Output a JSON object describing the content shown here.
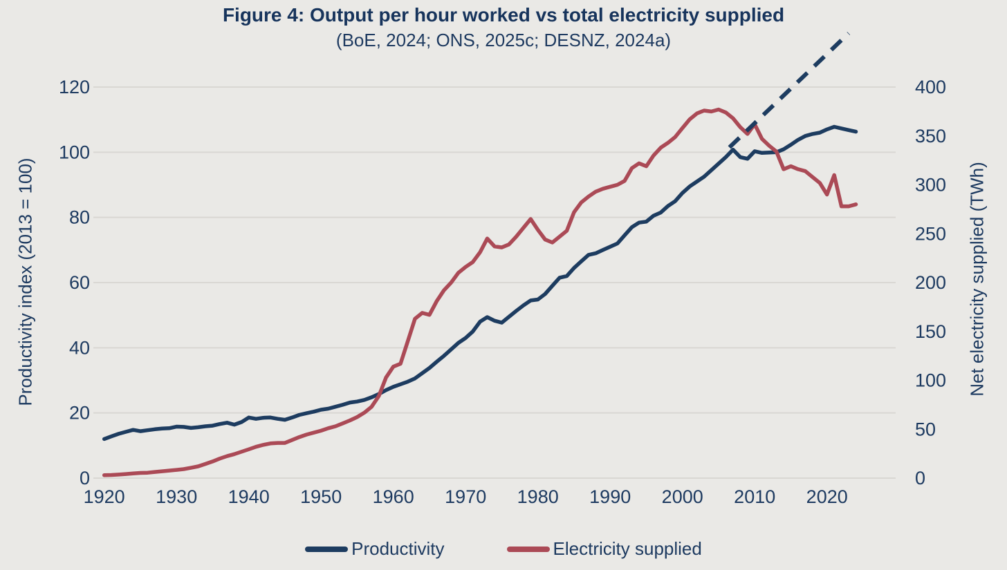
{
  "chart_data": {
    "type": "line",
    "title": "Figure 4: Output per hour worked vs total electricity supplied",
    "subtitle": "(BoE, 2024; ONS, 2025c; DESNZ, 2024a)",
    "grid": "horizontal",
    "legend_position": "bottom",
    "background": "#eae9e6",
    "gridline_color": "#d9d7d3",
    "text_color": "#1d3a60",
    "x_axis": {
      "label": "",
      "ticks": [
        1920,
        1930,
        1940,
        1950,
        1960,
        1970,
        1980,
        1990,
        2000,
        2010,
        2020
      ],
      "range": [
        1918.5,
        2029.5
      ]
    },
    "left_axis": {
      "label": "Productivity index (2013 = 100)",
      "ticks": [
        0,
        20,
        40,
        60,
        80,
        100,
        120
      ],
      "range": [
        0,
        120
      ]
    },
    "right_axis": {
      "label": "Net electricity supplied (TWh)",
      "ticks": [
        0,
        50,
        100,
        150,
        200,
        250,
        300,
        350,
        400
      ],
      "range": [
        0,
        400
      ]
    },
    "x": [
      1920,
      1921,
      1922,
      1923,
      1924,
      1925,
      1926,
      1927,
      1928,
      1929,
      1930,
      1931,
      1932,
      1933,
      1934,
      1935,
      1936,
      1937,
      1938,
      1939,
      1940,
      1941,
      1942,
      1943,
      1944,
      1945,
      1946,
      1947,
      1948,
      1949,
      1950,
      1951,
      1952,
      1953,
      1954,
      1955,
      1956,
      1957,
      1958,
      1959,
      1960,
      1961,
      1962,
      1963,
      1964,
      1965,
      1966,
      1967,
      1968,
      1969,
      1970,
      1971,
      1972,
      1973,
      1974,
      1975,
      1976,
      1977,
      1978,
      1979,
      1980,
      1981,
      1982,
      1983,
      1984,
      1985,
      1986,
      1987,
      1988,
      1989,
      1990,
      1991,
      1992,
      1993,
      1994,
      1995,
      1996,
      1997,
      1998,
      1999,
      2000,
      2001,
      2002,
      2003,
      2004,
      2005,
      2006,
      2007,
      2008,
      2009,
      2010,
      2011,
      2012,
      2013,
      2014,
      2015,
      2016,
      2017,
      2018,
      2019,
      2020,
      2021,
      2022,
      2023,
      2024
    ],
    "series": [
      {
        "name": "Productivity",
        "axis": "left",
        "color": "#1d3c60",
        "values": [
          12.0,
          12.8,
          13.6,
          14.2,
          14.8,
          14.4,
          14.7,
          15.0,
          15.2,
          15.3,
          15.8,
          15.7,
          15.4,
          15.6,
          15.9,
          16.1,
          16.6,
          17.0,
          16.4,
          17.2,
          18.6,
          18.2,
          18.5,
          18.6,
          18.2,
          17.9,
          18.6,
          19.4,
          19.9,
          20.4,
          21.0,
          21.3,
          21.9,
          22.5,
          23.2,
          23.5,
          24.0,
          24.8,
          25.8,
          27.0,
          28.0,
          28.8,
          29.6,
          30.6,
          32.2,
          33.8,
          35.7,
          37.5,
          39.5,
          41.5,
          43.0,
          45.0,
          48.0,
          49.4,
          48.3,
          47.7,
          49.5,
          51.3,
          53.0,
          54.5,
          54.8,
          56.5,
          59.0,
          61.5,
          62.0,
          64.5,
          66.5,
          68.5,
          69.0,
          70.0,
          71.0,
          72.0,
          74.5,
          77.0,
          78.4,
          78.7,
          80.5,
          81.5,
          83.5,
          85.0,
          87.5,
          89.5,
          91.0,
          92.5,
          94.5,
          96.5,
          98.5,
          100.8,
          98.5,
          98.0,
          100.3,
          99.8,
          99.9,
          100.0,
          100.9,
          102.3,
          103.8,
          105.0,
          105.6,
          106.0,
          107.0,
          107.8,
          107.3,
          106.8,
          106.3
        ]
      },
      {
        "name": "Electricity supplied",
        "axis": "right",
        "color": "#ab4a56",
        "values": [
          3.0,
          3.2,
          3.6,
          4.2,
          4.8,
          5.3,
          5.5,
          6.3,
          7.0,
          7.7,
          8.4,
          9.2,
          10.5,
          12.0,
          14.5,
          17.0,
          20.0,
          22.5,
          24.5,
          27.0,
          29.5,
          32.0,
          34.0,
          35.5,
          36.0,
          36.0,
          39.0,
          42.0,
          44.5,
          46.5,
          48.5,
          51.0,
          53.0,
          56.0,
          59.0,
          62.5,
          67.0,
          73.0,
          84.0,
          103.0,
          114.0,
          117.0,
          140.0,
          163.0,
          169.0,
          167.0,
          181.0,
          192.0,
          200.0,
          210.0,
          216.0,
          221.0,
          231.0,
          245.0,
          237.0,
          236.0,
          239.0,
          247.0,
          256.0,
          265.0,
          254.0,
          244.0,
          241.0,
          247.0,
          253.0,
          272.0,
          282.0,
          288.0,
          293.0,
          296.0,
          298.0,
          300.0,
          304.0,
          317.0,
          322.0,
          319.0,
          330.0,
          338.0,
          343.0,
          349.0,
          358.0,
          367.0,
          373.0,
          376.0,
          375.0,
          377.0,
          374.0,
          368.0,
          359.0,
          352.0,
          362.0,
          347.0,
          340.0,
          334.0,
          316.0,
          319.0,
          316.0,
          314.0,
          308.0,
          302.0,
          290.0,
          310.0,
          278.0,
          278.0,
          280.0
        ]
      }
    ],
    "projection": {
      "name": "pre-2008 productivity trend (dashed)",
      "axis": "left",
      "color": "#1d3c60",
      "dash": [
        20,
        14
      ],
      "points": [
        [
          2006.5,
          101.5
        ],
        [
          2023.0,
          136.5
        ]
      ]
    }
  }
}
